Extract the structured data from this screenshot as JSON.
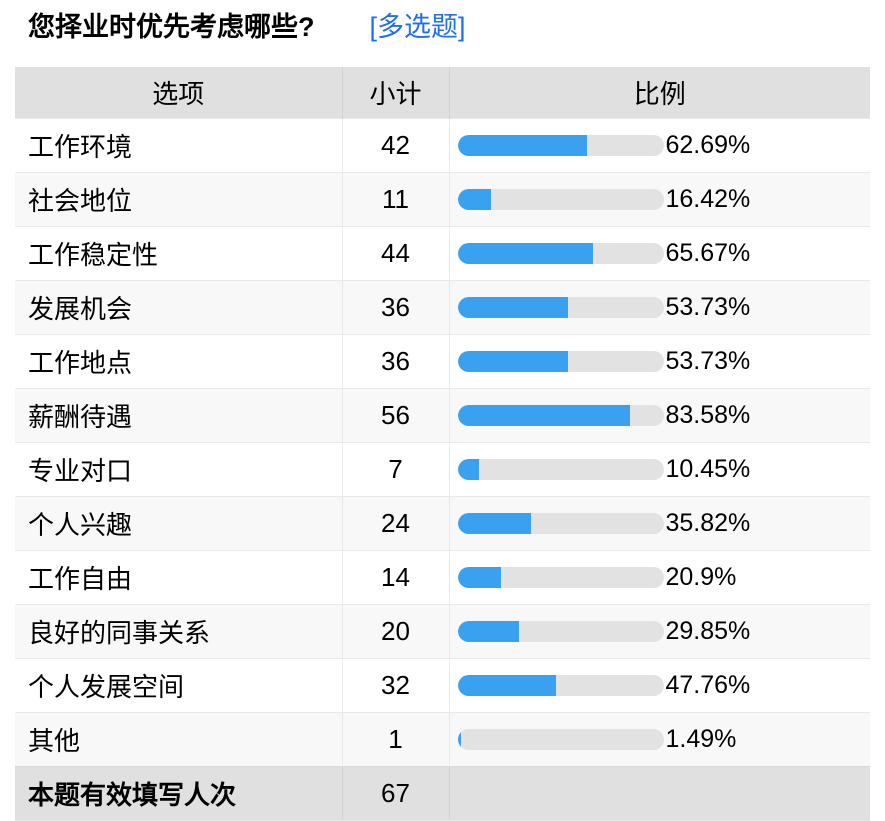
{
  "question": {
    "title": "您择业时优先考虑哪些?",
    "type_tag": "[多选题]"
  },
  "table": {
    "headers": [
      "选项",
      "小计",
      "比例"
    ],
    "rows": [
      {
        "label": "工作环境",
        "count": "42",
        "percent": "62.69%",
        "value": 62.69
      },
      {
        "label": "社会地位",
        "count": "11",
        "percent": "16.42%",
        "value": 16.42
      },
      {
        "label": "工作稳定性",
        "count": "44",
        "percent": "65.67%",
        "value": 65.67
      },
      {
        "label": "发展机会",
        "count": "36",
        "percent": "53.73%",
        "value": 53.73
      },
      {
        "label": "工作地点",
        "count": "36",
        "percent": "53.73%",
        "value": 53.73
      },
      {
        "label": "薪酬待遇",
        "count": "56",
        "percent": "83.58%",
        "value": 83.58
      },
      {
        "label": "专业对口",
        "count": "7",
        "percent": "10.45%",
        "value": 10.45
      },
      {
        "label": "个人兴趣",
        "count": "24",
        "percent": "35.82%",
        "value": 35.82
      },
      {
        "label": "工作自由",
        "count": "14",
        "percent": "20.9%",
        "value": 20.9
      },
      {
        "label": "良好的同事关系",
        "count": "20",
        "percent": "29.85%",
        "value": 29.85
      },
      {
        "label": "个人发展空间",
        "count": "32",
        "percent": "47.76%",
        "value": 47.76
      },
      {
        "label": "其他",
        "count": "1",
        "percent": "1.49%",
        "value": 1.49
      }
    ],
    "footer": {
      "label": "本题有效填写人次",
      "count": "67"
    }
  },
  "colors": {
    "bar_fill": "#3aa1f1",
    "bar_track": "#e2e2e2",
    "header_bg": "#e0e0e0",
    "alt_row_bg": "#f8f8f8",
    "tag_blue": "#1f6ff2"
  },
  "chart_data": {
    "type": "bar",
    "orientation": "horizontal",
    "title": "您择业时优先考虑哪些? [多选题]",
    "categories": [
      "工作环境",
      "社会地位",
      "工作稳定性",
      "发展机会",
      "工作地点",
      "薪酬待遇",
      "专业对口",
      "个人兴趣",
      "工作自由",
      "良好的同事关系",
      "个人发展空间",
      "其他"
    ],
    "series": [
      {
        "name": "小计",
        "values": [
          42,
          11,
          44,
          36,
          36,
          56,
          7,
          24,
          14,
          20,
          32,
          1
        ]
      },
      {
        "name": "比例(%)",
        "values": [
          62.69,
          16.42,
          65.67,
          53.73,
          53.73,
          83.58,
          10.45,
          35.82,
          20.9,
          29.85,
          47.76,
          1.49
        ]
      }
    ],
    "xlim": [
      0,
      100
    ],
    "total_label": "本题有效填写人次",
    "total": 67,
    "legend": "none",
    "grid": false
  }
}
